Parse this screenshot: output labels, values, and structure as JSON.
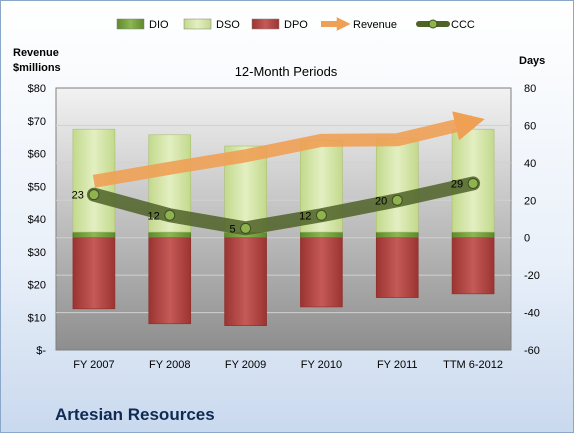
{
  "company": "Artesian Resources",
  "chart_data": {
    "type": "bar",
    "title": "12-Month Periods",
    "left_axis_label": [
      "Revenue",
      "$millions"
    ],
    "right_axis_label": "Days",
    "categories": [
      "FY 2007",
      "FY 2008",
      "FY 2009",
      "FY 2010",
      "FY 2011",
      "TTM 6-2012"
    ],
    "left_ticks": [
      "$-",
      "$10",
      "$20",
      "$30",
      "$40",
      "$50",
      "$60",
      "$70",
      "$80"
    ],
    "left_ylim": [
      0,
      80
    ],
    "right_ticks": [
      "-60",
      "-40",
      "-20",
      "0",
      "20",
      "40",
      "60",
      "80"
    ],
    "right_ylim": [
      -60,
      80
    ],
    "legend_position": "top",
    "series": [
      {
        "name": "DIO",
        "kind": "stacked-bar",
        "axis": "days",
        "color": "#77a03c",
        "values": [
          3,
          3,
          3,
          3,
          3,
          3
        ]
      },
      {
        "name": "DSO",
        "kind": "stacked-bar",
        "axis": "days",
        "color": "#d2e3a6",
        "values": [
          55,
          52,
          46,
          49,
          50,
          55
        ]
      },
      {
        "name": "DPO",
        "kind": "stacked-bar",
        "axis": "days",
        "color": "#c0504d",
        "values": [
          -38,
          -46,
          -47,
          -37,
          -32,
          -30
        ]
      },
      {
        "name": "Revenue",
        "kind": "line-arrow",
        "axis": "revenue",
        "color": "#f0a055",
        "values": [
          51.5,
          55.5,
          59.3,
          64,
          64.2,
          69.7
        ]
      },
      {
        "name": "CCC",
        "kind": "line-marker",
        "axis": "days",
        "color": "#4f6228",
        "values": [
          23,
          12,
          5,
          12,
          20,
          29
        ]
      }
    ],
    "ccc_labels": [
      "23",
      "12",
      "5",
      "12",
      "20",
      "29"
    ],
    "grid": true
  }
}
